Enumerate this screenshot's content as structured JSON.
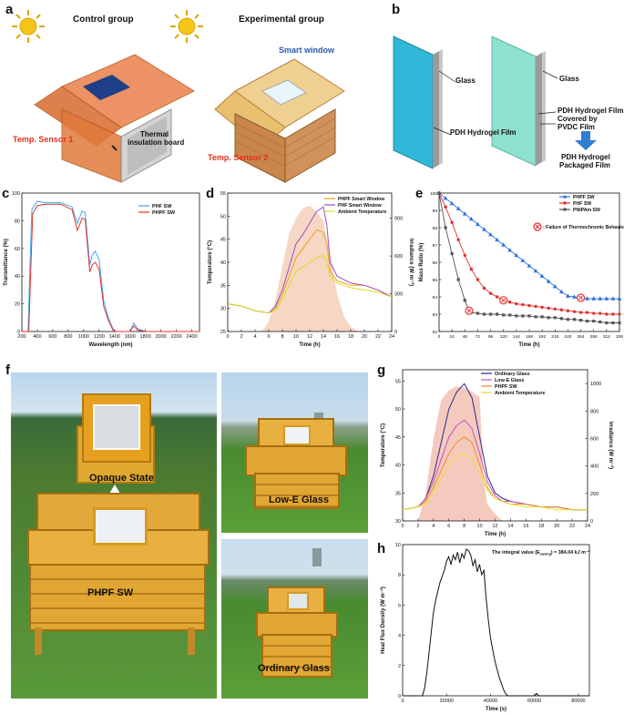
{
  "panel_a": {
    "letter": "a",
    "control_title": "Control group",
    "experimental_title": "Experimental group",
    "smart_window": "Smart window",
    "temp_sensor_1": "Temp. Sensor 1",
    "temp_sensor_2": "Temp. Sensor 2",
    "thermal_board_1": "Thermal",
    "thermal_board_2": "insulation board"
  },
  "panel_b": {
    "letter": "b",
    "glass_1": "Glass",
    "glass_2": "Glass",
    "pdh_film": "PDH Hydrogel Film",
    "pdh_film_covered_1": "PDH Hydrogel Film",
    "pdh_film_covered_2": "Covered by",
    "pdh_film_covered_3": "PVDC Film",
    "packaged_1": "PDH Hydrogel",
    "packaged_2": "Packaged Film",
    "colors": {
      "glass_blue": "#31b8d8",
      "glass_mint": "#8fe0cf",
      "arrow": "#2f7fd0"
    }
  },
  "panel_c": {
    "letter": "c",
    "xlabel": "Wavelength (nm)",
    "ylabel": "Transmittance (%)",
    "legend": [
      "PHF SW",
      "PHPF SW"
    ]
  },
  "panel_d": {
    "letter": "d",
    "xlabel": "Time (h)",
    "ylabel": "Temperature (°C)",
    "y2label": "Irradiance (W m⁻²)",
    "legend": [
      "PHPF Smart Window",
      "PHF Smart Window",
      "Ambient Temperature"
    ]
  },
  "panel_e": {
    "letter": "e",
    "xlabel": "Time (h)",
    "ylabel": "Mass Ratio (%)",
    "legend": [
      "PHPF SW",
      "PHF SW",
      "PNIPAm SW"
    ],
    "failure_note": ": Failure of Thermochromic Behavior"
  },
  "panel_f": {
    "letter": "f",
    "opaque_state": "Opaque State",
    "phpf_sw": "PHPF SW",
    "low_e": "Low-E Glass",
    "ordinary": "Ordinary Glass"
  },
  "panel_g": {
    "letter": "g",
    "xlabel": "Time (h)",
    "ylabel": "Temperature (°C)",
    "y2label": "Irradiance (W m⁻²)",
    "legend": [
      "Ordinary Glass",
      "Low-E Glass",
      "PHPF SW",
      "Ambient Temperature"
    ]
  },
  "panel_h": {
    "letter": "h",
    "xlabel": "Time (s)",
    "ylabel": "Heat Flux Density (W m⁻²)",
    "note": "The integral value (E",
    "note_sub": "saving",
    "note_end": ") = 384.04 kJ m⁻²"
  },
  "chart_data": [
    {
      "id": "c",
      "type": "line",
      "xlabel": "Wavelength (nm)",
      "ylabel": "Transmittance (%)",
      "xlim": [
        200,
        2500
      ],
      "ylim": [
        0,
        100
      ],
      "xticks": [
        200,
        400,
        600,
        800,
        1000,
        1200,
        1400,
        1600,
        1800,
        2000,
        2200,
        2400
      ],
      "yticks": [
        0,
        20,
        40,
        60,
        80,
        100
      ],
      "series": [
        {
          "name": "PHF SW",
          "color": "#3fa9f5",
          "x": [
            200,
            280,
            300,
            330,
            400,
            500,
            700,
            850,
            920,
            980,
            1020,
            1080,
            1110,
            1150,
            1200,
            1260,
            1320,
            1380,
            1420,
            1600,
            1650,
            1700,
            1800,
            2500
          ],
          "y": [
            0,
            0,
            40,
            88,
            94,
            93,
            93,
            90,
            78,
            87,
            86,
            48,
            55,
            58,
            52,
            22,
            10,
            2,
            0,
            0,
            6,
            2,
            0,
            0
          ]
        },
        {
          "name": "PHPF SW",
          "color": "#e8302a",
          "x": [
            200,
            290,
            310,
            340,
            400,
            500,
            700,
            850,
            920,
            980,
            1020,
            1080,
            1110,
            1150,
            1200,
            1260,
            1320,
            1380,
            1420,
            1600,
            1650,
            1700,
            1800,
            2500
          ],
          "y": [
            0,
            0,
            35,
            85,
            91,
            92,
            92,
            88,
            73,
            82,
            81,
            43,
            48,
            50,
            45,
            18,
            8,
            1,
            0,
            0,
            4,
            1,
            0,
            0
          ]
        }
      ]
    },
    {
      "id": "d",
      "type": "line",
      "xlabel": "Time (h)",
      "ylabel": "Temperature (°C)",
      "y2label": "Irradiance (W m⁻²)",
      "xlim": [
        0,
        24
      ],
      "ylim": [
        25,
        55
      ],
      "y2lim": [
        0,
        1100
      ],
      "xticks": [
        0,
        2,
        4,
        6,
        8,
        10,
        12,
        14,
        16,
        18,
        20,
        22,
        24
      ],
      "yticks": [
        25,
        30,
        35,
        40,
        45,
        50,
        55
      ],
      "y2ticks": [
        0,
        300,
        600,
        900
      ],
      "series": [
        {
          "name": "PHPF Smart Window",
          "color": "#f0a020",
          "x": [
            0,
            2,
            4,
            6,
            7,
            8,
            9,
            10,
            11,
            12,
            13,
            14,
            14.5,
            15,
            16,
            18,
            20,
            22,
            24
          ],
          "y": [
            31,
            30.5,
            29.5,
            29,
            30,
            33,
            37,
            41,
            43,
            45,
            47,
            46.5,
            44,
            38,
            36,
            35,
            35,
            34,
            32.5
          ]
        },
        {
          "name": "PHF Smart Window",
          "color": "#9a50c8",
          "x": [
            0,
            2,
            4,
            6,
            7,
            8,
            9,
            10,
            11,
            12,
            13,
            14,
            14.5,
            15,
            16,
            18,
            20,
            22,
            24
          ],
          "y": [
            31,
            30.5,
            29.5,
            29,
            30.5,
            34,
            39,
            44,
            46,
            48.5,
            51,
            52,
            48,
            40,
            37,
            35.5,
            35,
            34,
            32.5
          ]
        },
        {
          "name": "Ambient Temperature",
          "color": "#d8e020",
          "x": [
            0,
            2,
            4,
            6,
            7,
            8,
            9,
            10,
            11,
            12,
            13,
            14,
            14.5,
            15,
            16,
            18,
            20,
            22,
            24
          ],
          "y": [
            31,
            30.5,
            29.5,
            29,
            29.5,
            32,
            35,
            38,
            39,
            40,
            41,
            41.5,
            40,
            37,
            35.5,
            34.5,
            34,
            33.5,
            32.5
          ]
        },
        {
          "name": "Irradiance",
          "color": "#f2c9b0",
          "axis": "y2",
          "x": [
            5,
            6,
            7,
            8,
            9,
            10,
            11,
            12,
            13,
            14,
            15,
            16,
            17,
            18,
            19
          ],
          "y": [
            0,
            80,
            250,
            520,
            780,
            900,
            980,
            1000,
            950,
            880,
            600,
            300,
            120,
            40,
            0
          ]
        }
      ]
    },
    {
      "id": "e",
      "type": "line",
      "xlabel": "Time (h)",
      "ylabel": "Mass Ratio (%)",
      "xlim": [
        0,
        336
      ],
      "ylim": [
        92,
        100
      ],
      "xticks": [
        0,
        24,
        48,
        72,
        96,
        120,
        144,
        168,
        192,
        216,
        240,
        264,
        288,
        312,
        336
      ],
      "yticks": [
        92,
        93,
        94,
        95,
        96,
        97,
        98,
        99,
        100
      ],
      "failures": [
        {
          "x": 56,
          "y": 93.2
        },
        {
          "x": 120,
          "y": 93.8
        },
        {
          "x": 264,
          "y": 93.95
        }
      ],
      "series": [
        {
          "name": "PHPF SW",
          "color": "#3070e0",
          "marker": "triangle",
          "x": [
            0,
            12,
            24,
            36,
            48,
            60,
            72,
            84,
            96,
            108,
            120,
            132,
            144,
            156,
            168,
            180,
            192,
            204,
            216,
            228,
            240,
            252,
            264,
            276,
            288,
            300,
            312,
            324,
            336
          ],
          "y": [
            100,
            99.7,
            99.4,
            99.1,
            98.8,
            98.5,
            98.2,
            97.9,
            97.6,
            97.3,
            97.0,
            96.7,
            96.4,
            96.1,
            95.8,
            95.5,
            95.2,
            94.9,
            94.6,
            94.3,
            94.05,
            94.0,
            93.95,
            93.9,
            93.9,
            93.9,
            93.9,
            93.9,
            93.9
          ]
        },
        {
          "name": "PHF SW",
          "color": "#e03030",
          "marker": "circle",
          "x": [
            0,
            12,
            24,
            36,
            48,
            60,
            72,
            84,
            96,
            108,
            120,
            132,
            144,
            156,
            168,
            180,
            192,
            204,
            216,
            228,
            240,
            252,
            264,
            276,
            288,
            300,
            312,
            324,
            336
          ],
          "y": [
            100,
            99.2,
            98.3,
            97.3,
            96.4,
            95.6,
            95.0,
            94.5,
            94.2,
            94.0,
            93.8,
            93.7,
            93.6,
            93.55,
            93.5,
            93.45,
            93.4,
            93.35,
            93.3,
            93.25,
            93.2,
            93.15,
            93.1,
            93.1,
            93.05,
            93.05,
            93.0,
            93.0,
            93.0
          ]
        },
        {
          "name": "PNIPAm SW",
          "color": "#555555",
          "marker": "square",
          "x": [
            0,
            12,
            24,
            36,
            48,
            56,
            60,
            72,
            84,
            96,
            108,
            120,
            132,
            144,
            156,
            168,
            180,
            192,
            204,
            216,
            228,
            240,
            252,
            264,
            276,
            288,
            300,
            312,
            324,
            336
          ],
          "y": [
            100,
            98.0,
            96.5,
            95.0,
            93.8,
            93.2,
            93.1,
            93.05,
            93.0,
            93.0,
            93.0,
            92.95,
            92.95,
            92.9,
            92.9,
            92.9,
            92.85,
            92.85,
            92.8,
            92.8,
            92.75,
            92.7,
            92.7,
            92.65,
            92.6,
            92.6,
            92.55,
            92.5,
            92.5,
            92.5
          ]
        }
      ]
    },
    {
      "id": "g",
      "type": "line",
      "xlabel": "Time (h)",
      "ylabel": "Temperature (°C)",
      "y2label": "Irradiance (W m⁻²)",
      "xlim": [
        0,
        24
      ],
      "ylim": [
        30,
        57
      ],
      "y2lim": [
        0,
        1100
      ],
      "xticks": [
        0,
        2,
        4,
        6,
        8,
        10,
        12,
        14,
        16,
        18,
        20,
        22,
        24
      ],
      "yticks": [
        30,
        35,
        40,
        45,
        50,
        55
      ],
      "y2ticks": [
        0,
        200,
        400,
        600,
        800,
        1000
      ],
      "series": [
        {
          "name": "Ordinary Glass",
          "color": "#2a2a90",
          "x": [
            0,
            2,
            3,
            4,
            5,
            6,
            7,
            8,
            9,
            10,
            11,
            12,
            13,
            14,
            16,
            18,
            20,
            22,
            24
          ],
          "y": [
            32,
            32.5,
            34,
            38,
            44,
            50,
            53,
            54.5,
            52,
            45,
            38,
            35,
            34,
            33.5,
            33,
            32.5,
            32.5,
            32,
            32
          ]
        },
        {
          "name": "Low-E Glass",
          "color": "#c050c0",
          "x": [
            0,
            2,
            3,
            4,
            5,
            6,
            7,
            8,
            9,
            10,
            11,
            12,
            13,
            14,
            16,
            18,
            20,
            22,
            24
          ],
          "y": [
            32,
            32.5,
            34,
            37,
            41,
            45,
            47,
            48,
            46.5,
            42,
            37,
            34.5,
            33.5,
            33.5,
            33,
            32.5,
            32.5,
            32,
            32
          ]
        },
        {
          "name": "PHPF SW",
          "color": "#f09020",
          "x": [
            0,
            2,
            3,
            4,
            5,
            6,
            7,
            8,
            9,
            10,
            11,
            12,
            13,
            14,
            16,
            18,
            20,
            22,
            24
          ],
          "y": [
            32,
            32.5,
            33.5,
            36,
            39,
            42,
            44,
            45,
            44,
            40,
            36,
            34,
            33.5,
            33,
            33,
            32.5,
            32.5,
            32,
            32
          ]
        },
        {
          "name": "Ambient Temperature",
          "color": "#e8e030",
          "x": [
            0,
            2,
            3,
            4,
            5,
            6,
            7,
            8,
            9,
            10,
            11,
            12,
            13,
            14,
            16,
            18,
            20,
            22,
            24
          ],
          "y": [
            32,
            32.5,
            33,
            35,
            37.5,
            40,
            41.5,
            42,
            41,
            38.5,
            35.5,
            34,
            33.5,
            33,
            32.5,
            32.5,
            32,
            32,
            32
          ]
        },
        {
          "name": "Irradiance",
          "color": "#f2b8a8",
          "axis": "y2",
          "x": [
            2,
            3,
            4,
            5,
            6,
            7,
            8,
            9,
            10,
            10.5,
            11,
            12,
            13
          ],
          "y": [
            0,
            200,
            600,
            880,
            950,
            980,
            970,
            940,
            900,
            300,
            120,
            50,
            0
          ]
        }
      ]
    },
    {
      "id": "h",
      "type": "line",
      "xlabel": "Time (s)",
      "ylabel": "Heat Flux Density (W m⁻²)",
      "xlim": [
        0,
        85000
      ],
      "ylim": [
        0,
        10
      ],
      "xticks": [
        0,
        20000,
        40000,
        60000,
        80000
      ],
      "yticks": [
        0,
        2,
        4,
        6,
        8,
        10
      ],
      "series": [
        {
          "name": "",
          "color": "#111111",
          "x": [
            0,
            9000,
            10000,
            11000,
            12000,
            13000,
            14000,
            15000,
            16000,
            17000,
            18000,
            19000,
            20000,
            21000,
            22000,
            23000,
            24000,
            25000,
            26000,
            27000,
            28000,
            29000,
            30000,
            31000,
            32000,
            33000,
            34000,
            35000,
            36000,
            37000,
            38000,
            39000,
            40000,
            42000,
            44000,
            46000,
            47000,
            48000,
            60000,
            61000,
            62000,
            85000
          ],
          "y": [
            0,
            0,
            0.5,
            1.5,
            2.8,
            4.2,
            5.5,
            6.3,
            6.9,
            7.5,
            7.9,
            8.3,
            8.9,
            9.2,
            8.7,
            9.3,
            9.0,
            9.5,
            8.8,
            9.4,
            9.1,
            9.7,
            9.6,
            9.3,
            8.6,
            9.0,
            8.2,
            8.7,
            8.0,
            8.3,
            6.5,
            5.0,
            3.8,
            2.3,
            1.2,
            0.4,
            0.1,
            0,
            0,
            0.15,
            0,
            0
          ]
        }
      ]
    }
  ]
}
